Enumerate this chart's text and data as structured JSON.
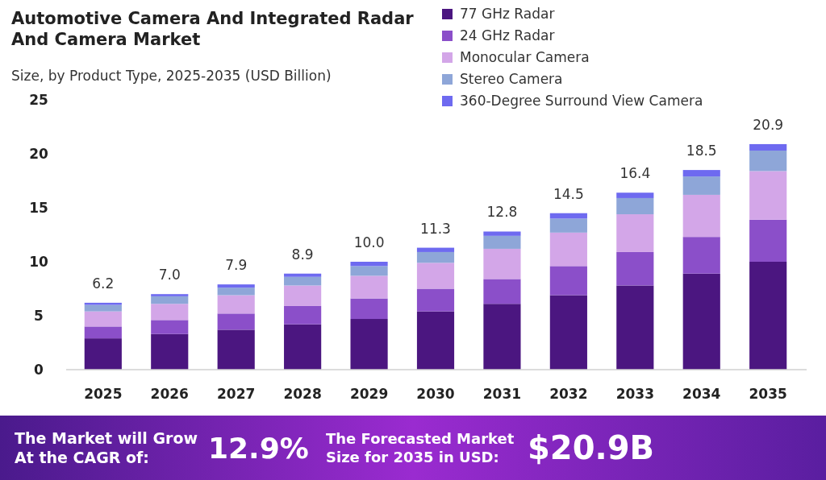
{
  "chart_data": {
    "type": "bar",
    "stacked": true,
    "title": "Automotive Camera And Integrated Radar And Camera Market",
    "subtitle": "Size, by Product Type, 2025-2035 (USD Billion)",
    "categories": [
      "2025",
      "2026",
      "2027",
      "2028",
      "2029",
      "2030",
      "2031",
      "2032",
      "2033",
      "2034",
      "2035"
    ],
    "series": [
      {
        "name": "77 GHz Radar",
        "color": "#4b1680",
        "values": [
          2.9,
          3.3,
          3.7,
          4.2,
          4.7,
          5.4,
          6.1,
          6.9,
          7.8,
          8.9,
          10.0
        ]
      },
      {
        "name": "24 GHz Radar",
        "color": "#8b4fc9",
        "values": [
          1.1,
          1.3,
          1.5,
          1.7,
          1.9,
          2.1,
          2.3,
          2.7,
          3.1,
          3.4,
          3.9
        ]
      },
      {
        "name": "Monocular Camera",
        "color": "#d3a6e8",
        "values": [
          1.4,
          1.5,
          1.7,
          1.9,
          2.1,
          2.4,
          2.8,
          3.1,
          3.5,
          3.9,
          4.5
        ]
      },
      {
        "name": "Stereo Camera",
        "color": "#8ea6d8",
        "values": [
          0.6,
          0.7,
          0.7,
          0.8,
          0.9,
          1.0,
          1.2,
          1.3,
          1.5,
          1.7,
          1.9
        ]
      },
      {
        "name": "360-Degree Surround View Camera",
        "color": "#6e6af0",
        "values": [
          0.2,
          0.2,
          0.3,
          0.3,
          0.4,
          0.4,
          0.4,
          0.5,
          0.5,
          0.6,
          0.6
        ]
      }
    ],
    "totals": [
      "6.2",
      "7.0",
      "7.9",
      "8.9",
      "10.0",
      "11.3",
      "12.8",
      "14.5",
      "16.4",
      "18.5",
      "20.9"
    ],
    "ylim": [
      0,
      25
    ],
    "yticks": [
      0,
      5,
      10,
      15,
      20,
      25
    ],
    "grid": false,
    "legend": "top right",
    "annotations": [
      "The Market will Grow At the CAGR of:",
      "12.9%",
      "The Forecasted Market Size for 2035 in USD:",
      "$20.9B"
    ]
  }
}
